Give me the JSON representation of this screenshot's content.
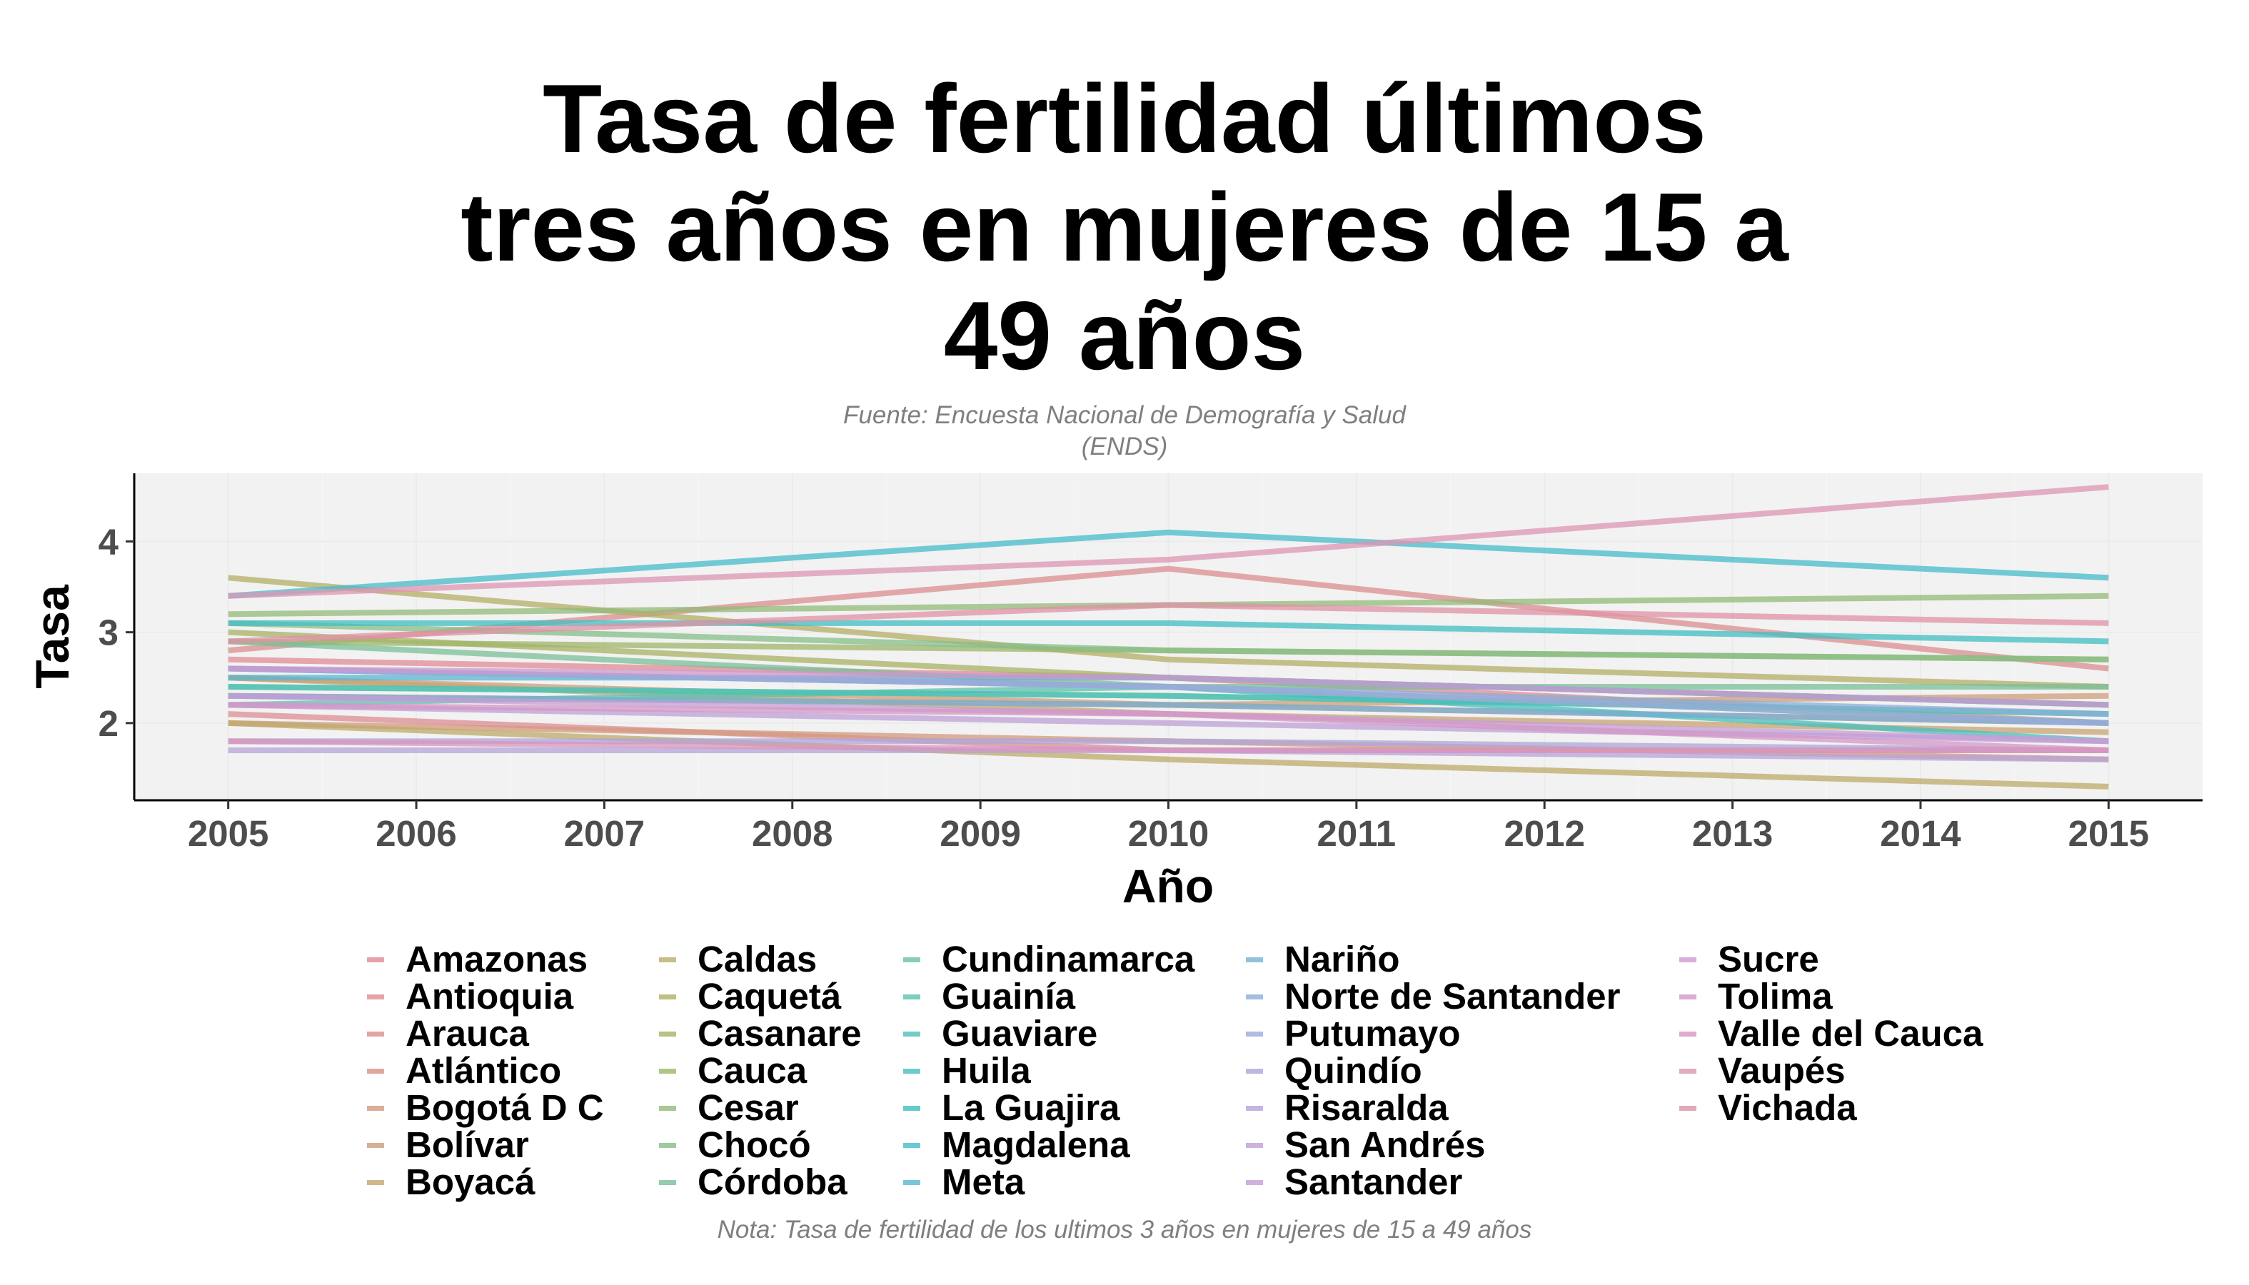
{
  "title_lines": [
    "Tasa de fertilidad últimos",
    "tres años en mujeres de 15 a",
    "49 años"
  ],
  "subtitle_lines": [
    "Fuente: Encuesta Nacional de Demografía y Salud",
    "(ENDS)"
  ],
  "caption": "Nota: Tasa de fertilidad de los ultimos 3 años en mujeres de 15 a 49 años",
  "chart_data": {
    "type": "line",
    "title": "Tasa de fertilidad últimos tres años en mujeres de 15 a 49 años",
    "subtitle": "Fuente: Encuesta Nacional de Demografía y Salud (ENDS)",
    "xlabel": "Año",
    "ylabel": "Tasa",
    "x": [
      2005,
      2010,
      2015
    ],
    "x_ticks": [
      2005,
      2006,
      2007,
      2008,
      2009,
      2010,
      2011,
      2012,
      2013,
      2014,
      2015
    ],
    "y_ticks": [
      2,
      3,
      4
    ],
    "xlim": [
      2004.5,
      2015.5
    ],
    "ylim": [
      1.15,
      4.75
    ],
    "grid": true,
    "legend_position": "bottom",
    "series": [
      {
        "name": "Amazonas",
        "color": "#E08B96",
        "values": [
          2.7,
          2.5,
          2.0
        ]
      },
      {
        "name": "Antioquia",
        "color": "#DE8C93",
        "values": [
          2.1,
          1.7,
          1.7
        ]
      },
      {
        "name": "Arauca",
        "color": "#DB8E8F",
        "values": [
          2.8,
          3.7,
          2.6
        ]
      },
      {
        "name": "Atlántico",
        "color": "#D8918A",
        "values": [
          2.3,
          2.2,
          2.0
        ]
      },
      {
        "name": "Bogotá D C",
        "color": "#D19A7E",
        "values": [
          2.0,
          1.8,
          1.6
        ]
      },
      {
        "name": "Bolívar",
        "color": "#CD9E79",
        "values": [
          2.5,
          2.2,
          2.3
        ]
      },
      {
        "name": "Boyacá",
        "color": "#C7A472",
        "values": [
          2.5,
          2.1,
          1.9
        ]
      },
      {
        "name": "Caldas",
        "color": "#BDAA6A",
        "values": [
          2.0,
          1.6,
          1.3
        ]
      },
      {
        "name": "Caquetá",
        "color": "#B3AE66",
        "values": [
          3.6,
          2.7,
          2.4
        ]
      },
      {
        "name": "Casanare",
        "color": "#A8B264",
        "values": [
          3.0,
          2.5,
          2.2
        ]
      },
      {
        "name": "Cauca",
        "color": "#9EB66A",
        "values": [
          2.9,
          2.8,
          2.7
        ]
      },
      {
        "name": "Cesar",
        "color": "#93B978",
        "values": [
          3.2,
          3.3,
          3.4
        ]
      },
      {
        "name": "Chocó",
        "color": "#86BD88",
        "values": [
          3.1,
          2.8,
          2.7
        ]
      },
      {
        "name": "Córdoba",
        "color": "#79BF97",
        "values": [
          2.9,
          2.4,
          2.4
        ]
      },
      {
        "name": "Cundinamarca",
        "color": "#6CC1A4",
        "values": [
          2.4,
          2.3,
          2.1
        ]
      },
      {
        "name": "Guainía",
        "color": "#5BC2AE",
        "values": [
          2.2,
          2.4,
          2.0
        ]
      },
      {
        "name": "Guaviare",
        "color": "#4FC1B6",
        "values": [
          2.4,
          2.3,
          2.1
        ]
      },
      {
        "name": "Huila",
        "color": "#47BFBC",
        "values": [
          2.6,
          2.4,
          1.8
        ]
      },
      {
        "name": "La Guajira",
        "color": "#40BDC2",
        "values": [
          3.1,
          3.1,
          2.9
        ]
      },
      {
        "name": "Magdalena",
        "color": "#46BBCA",
        "values": [
          3.4,
          4.1,
          3.6
        ]
      },
      {
        "name": "Meta",
        "color": "#5AB6D1",
        "values": [
          2.5,
          2.5,
          2.2
        ]
      },
      {
        "name": "Nariño",
        "color": "#76B2D4",
        "values": [
          2.3,
          2.2,
          2.0
        ]
      },
      {
        "name": "Norte de Santander",
        "color": "#8BAED8",
        "values": [
          2.6,
          2.4,
          2.1
        ]
      },
      {
        "name": "Putumayo",
        "color": "#A0AAD9",
        "values": [
          2.6,
          2.4,
          2.0
        ]
      },
      {
        "name": "Quindío",
        "color": "#AEA6DA",
        "values": [
          1.8,
          1.8,
          1.7
        ]
      },
      {
        "name": "Risaralda",
        "color": "#B6A3D9",
        "values": [
          1.7,
          1.7,
          1.6
        ]
      },
      {
        "name": "San Andrés",
        "color": "#BEA0D7",
        "values": [
          2.2,
          2.0,
          1.8
        ]
      },
      {
        "name": "Santander",
        "color": "#C69DD4",
        "values": [
          2.3,
          2.1,
          1.8
        ]
      },
      {
        "name": "Sucre",
        "color": "#CE9ACE",
        "values": [
          2.6,
          2.5,
          2.2
        ]
      },
      {
        "name": "Tolima",
        "color": "#D497C6",
        "values": [
          2.2,
          2.1,
          1.7
        ]
      },
      {
        "name": "Valle del Cauca",
        "color": "#D995BE",
        "values": [
          1.8,
          1.7,
          1.7
        ]
      },
      {
        "name": "Vaupés",
        "color": "#DC95B3",
        "values": [
          3.4,
          3.8,
          4.6
        ]
      },
      {
        "name": "Vichada",
        "color": "#DF92A6",
        "values": [
          2.9,
          3.3,
          3.1
        ]
      }
    ]
  }
}
